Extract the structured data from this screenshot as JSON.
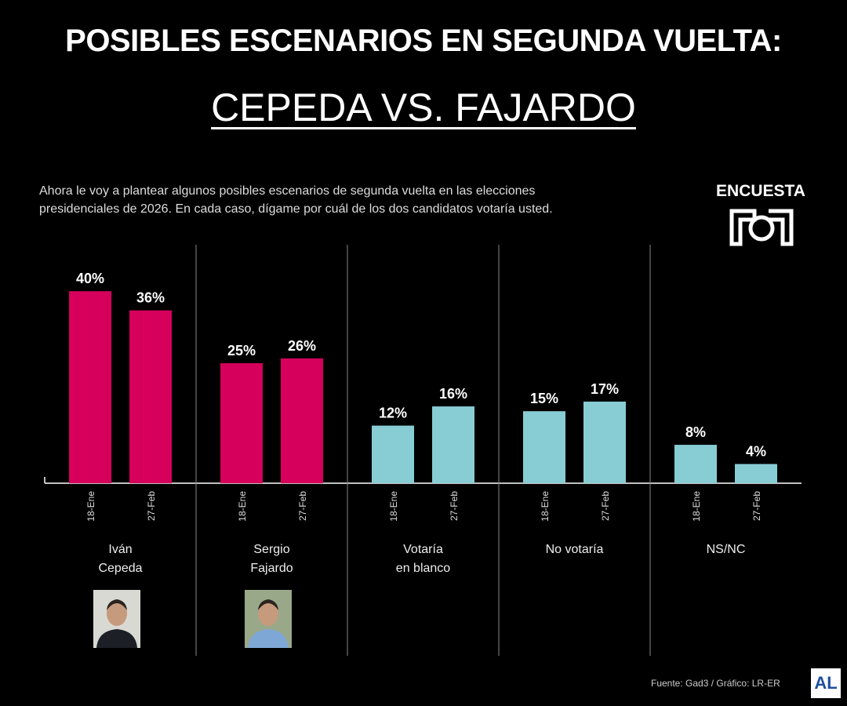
{
  "header": {
    "title": "POSIBLES ESCENARIOS EN SEGUNDA VUELTA:",
    "subtitle": "CEPEDA VS. FAJARDO"
  },
  "question": {
    "line1": "Ahora le voy a plantear algunos posibles escenarios de segunda vuelta en las elecciones",
    "line2": "presidenciales de 2026. En cada caso, dígame por cuál de los dos candidatos votaría usted."
  },
  "brand": {
    "label": "ENCUESTA",
    "logo_text": "RCN"
  },
  "footer": {
    "source": "Fuente: Gad3 / Gráfico: LR-ER",
    "publisher_logo": "AL"
  },
  "chart_data": {
    "type": "bar",
    "title": "POSIBLES ESCENARIOS EN SEGUNDA VUELTA: CEPEDA VS. FAJARDO",
    "categories": [
      {
        "label": [
          "Iván",
          "Cepeda"
        ],
        "color": "#d6005c",
        "photo": true
      },
      {
        "label": [
          "Sergio",
          "Fajardo"
        ],
        "color": "#d6005c",
        "photo": true
      },
      {
        "label": [
          "Votaría",
          "en blanco"
        ],
        "color": "#88cdd4",
        "photo": false
      },
      {
        "label": [
          "No votaría"
        ],
        "color": "#88cdd4",
        "photo": false
      },
      {
        "label": [
          "NS/NC"
        ],
        "color": "#88cdd4",
        "photo": false
      }
    ],
    "sub_categories": [
      "18-Ene",
      "27-Feb"
    ],
    "values": [
      [
        40,
        36
      ],
      [
        25,
        26
      ],
      [
        12,
        16
      ],
      [
        15,
        17
      ],
      [
        8,
        4
      ]
    ],
    "unit": "%",
    "ylim": [
      0,
      45
    ],
    "grid": false,
    "colors": {
      "candidate": "#d6005c",
      "other": "#88cdd4",
      "background": "#000000"
    }
  }
}
